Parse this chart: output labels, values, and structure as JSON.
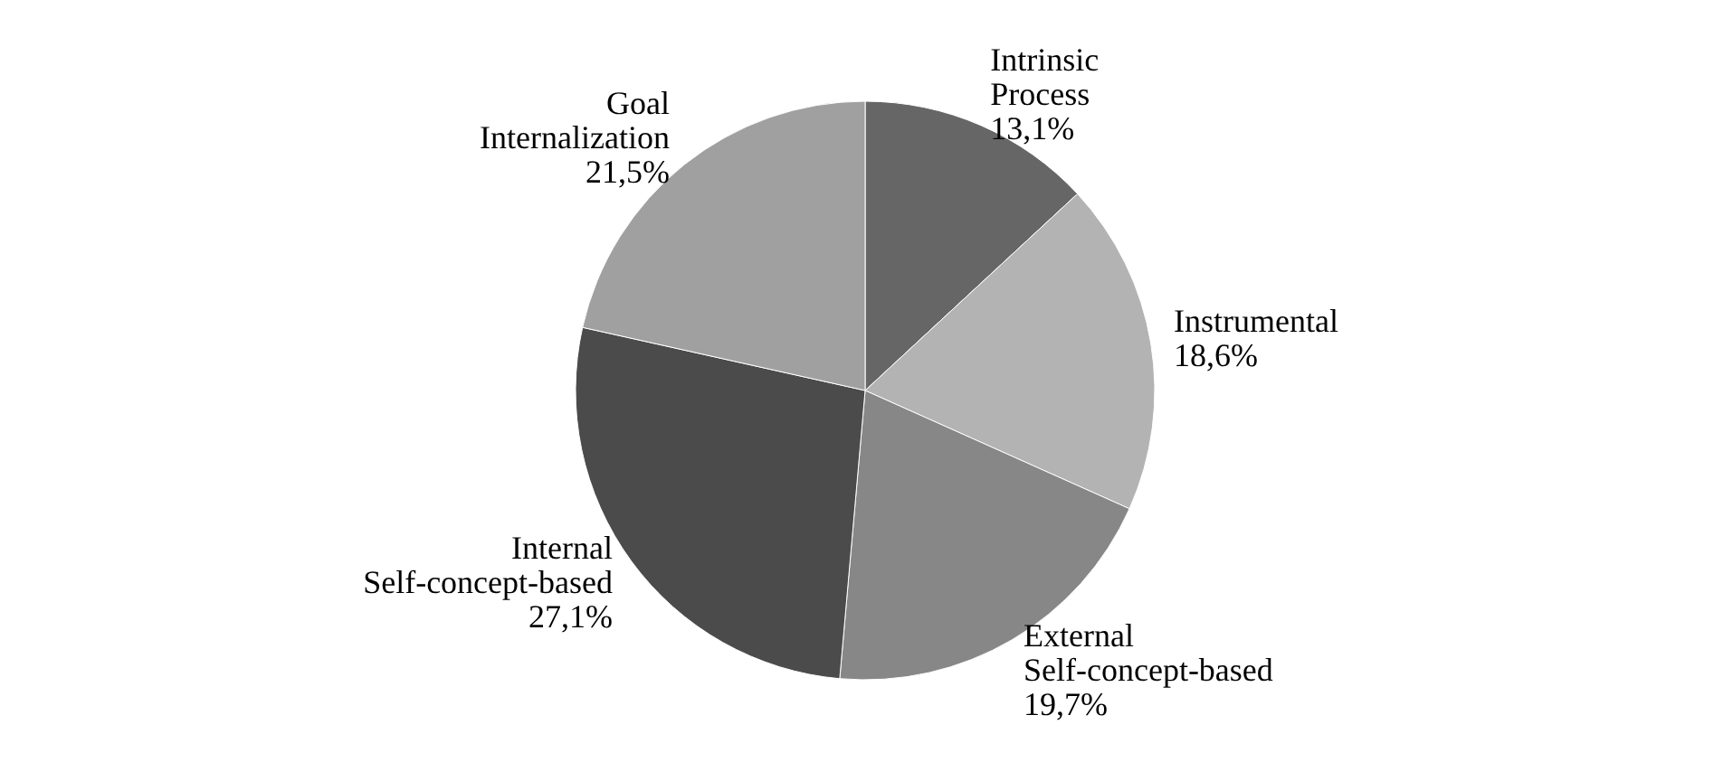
{
  "chart_data": {
    "type": "pie",
    "categories": [
      "Intrinsic Process",
      "Instrumental",
      "External Self-concept-based",
      "Internal Self-concept-based",
      "Goal Internalization"
    ],
    "values": [
      13.1,
      18.6,
      19.7,
      27.1,
      21.5
    ],
    "value_labels": [
      "13,1%",
      "18,6%",
      "19,7%",
      "27,1%",
      "21,5%"
    ],
    "colors": [
      "#666666",
      "#b3b3b3",
      "#878787",
      "#4b4b4b",
      "#a0a0a0"
    ]
  }
}
